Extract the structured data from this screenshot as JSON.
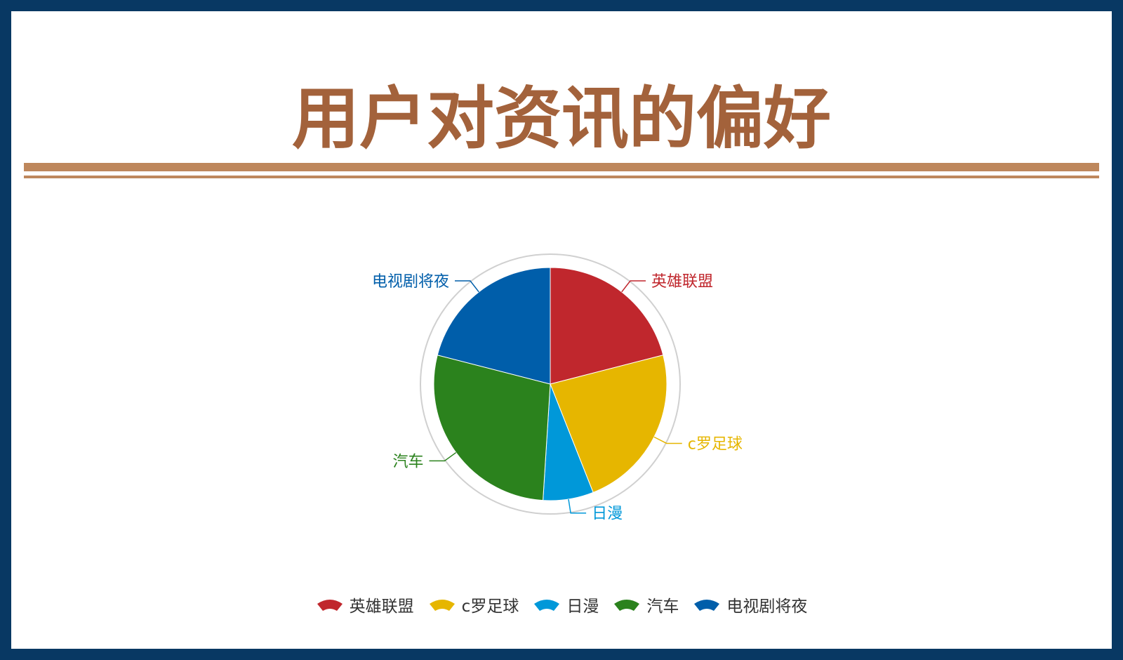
{
  "page": {
    "title": "用户对资讯的偏好",
    "background_color": "#083863",
    "title_color": "#a3623b",
    "rule_color": "#be875c"
  },
  "chart_data": {
    "type": "pie",
    "categories": [
      "英雄联盟",
      "c罗足球",
      "日漫",
      "汽车",
      "电视剧将夜"
    ],
    "values": [
      21,
      23,
      7,
      28,
      21
    ],
    "colors": [
      "#c0272d",
      "#e6b600",
      "#0098d9",
      "#2b821d",
      "#005eaa"
    ],
    "start_angle_deg": 0,
    "direction": "clockwise",
    "legend_position": "bottom"
  }
}
